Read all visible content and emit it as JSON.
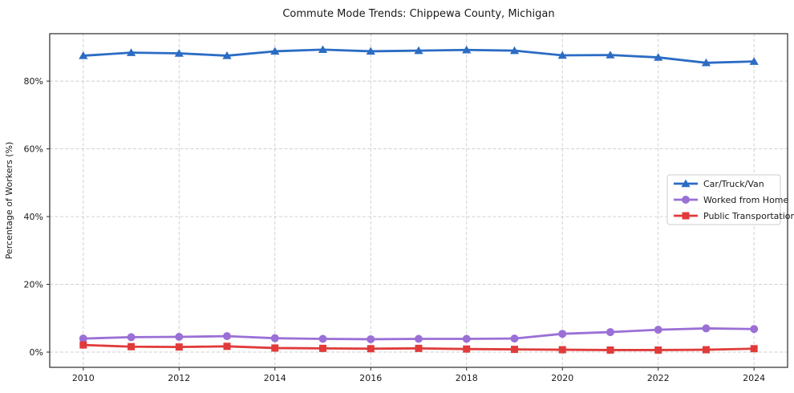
{
  "figure": {
    "background": "#ffffff"
  },
  "chart_data": {
    "type": "line",
    "title": "Commute Mode Trends: Chippewa County, Michigan",
    "xlabel": "",
    "ylabel": "Percentage of Workers (%)",
    "x": [
      2010,
      2011,
      2012,
      2013,
      2014,
      2015,
      2016,
      2017,
      2018,
      2019,
      2020,
      2021,
      2022,
      2023,
      2024
    ],
    "series": [
      {
        "name": "Car/Truck/Van",
        "color": "#2b6cc4",
        "marker": "triangle",
        "values": [
          87.5,
          88.4,
          88.2,
          87.5,
          88.8,
          89.3,
          88.8,
          89.0,
          89.2,
          89.0,
          87.6,
          87.7,
          87.0,
          85.4,
          85.8
        ]
      },
      {
        "name": "Worked from Home",
        "color": "#9a70d6",
        "marker": "circle",
        "values": [
          4.0,
          4.4,
          4.5,
          4.7,
          4.1,
          3.9,
          3.8,
          3.9,
          3.9,
          4.0,
          5.4,
          5.9,
          6.6,
          7.0,
          6.8
        ]
      },
      {
        "name": "Public Transportation",
        "color": "#e03b3a",
        "marker": "square",
        "values": [
          2.1,
          1.6,
          1.5,
          1.7,
          1.2,
          1.1,
          1.0,
          1.1,
          0.9,
          0.8,
          0.7,
          0.6,
          0.6,
          0.7,
          1.0
        ]
      }
    ],
    "xticks": {
      "values": [
        2010,
        2012,
        2014,
        2016,
        2018,
        2020,
        2022,
        2024
      ],
      "labels": [
        "2010",
        "2012",
        "2014",
        "2016",
        "2018",
        "2020",
        "2022",
        "2024"
      ]
    },
    "yticks": {
      "values": [
        0,
        20,
        40,
        60,
        80
      ],
      "labels": [
        "0%",
        "20%",
        "40%",
        "60%",
        "80%"
      ]
    },
    "xlim": [
      2009.3,
      2024.7
    ],
    "ylim": [
      -4.5,
      94
    ],
    "grid": true,
    "legend": {
      "position": "center-right",
      "entries": [
        "Car/Truck/Van",
        "Worked from Home",
        "Public Transportation"
      ]
    },
    "style": {
      "grid_color": "#cccccc",
      "grid_dash": "4 2.5",
      "spine_color": "#2a2a2a",
      "text_color": "#1a1a1a",
      "legend_border": "#cccccc",
      "legend_bg": "#ffffff"
    }
  }
}
